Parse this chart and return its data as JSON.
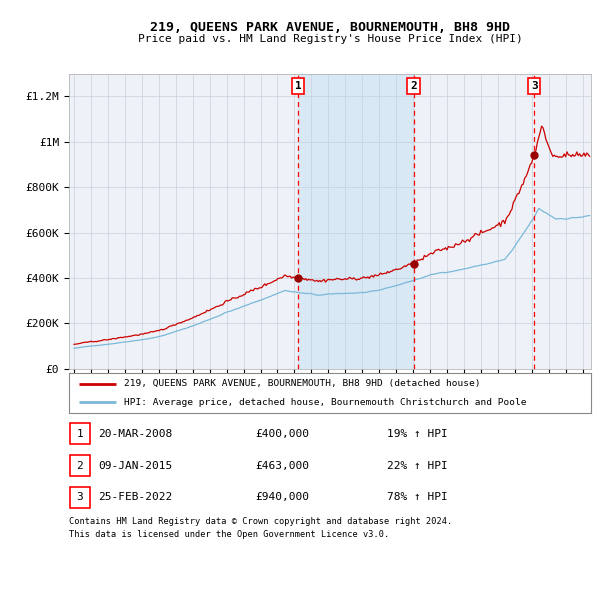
{
  "title": "219, QUEENS PARK AVENUE, BOURNEMOUTH, BH8 9HD",
  "subtitle": "Price paid vs. HM Land Registry's House Price Index (HPI)",
  "legend_line1": "219, QUEENS PARK AVENUE, BOURNEMOUTH, BH8 9HD (detached house)",
  "legend_line2": "HPI: Average price, detached house, Bournemouth Christchurch and Poole",
  "footnote1": "Contains HM Land Registry data © Crown copyright and database right 2024.",
  "footnote2": "This data is licensed under the Open Government Licence v3.0.",
  "transactions": [
    {
      "num": 1,
      "date": "20-MAR-2008",
      "price": 400000,
      "hpi_pct": "19%",
      "direction": "↑"
    },
    {
      "num": 2,
      "date": "09-JAN-2015",
      "price": 463000,
      "hpi_pct": "22%",
      "direction": "↑"
    },
    {
      "num": 3,
      "date": "25-FEB-2022",
      "price": 940000,
      "hpi_pct": "78%",
      "direction": "↑"
    }
  ],
  "sale1_x": 2008.22,
  "sale2_x": 2015.03,
  "sale3_x": 2022.15,
  "transaction_prices": [
    400000,
    463000,
    940000
  ],
  "hpi_color": "#7ab8d9",
  "property_color": "#cc0000",
  "background_color": "#ffffff",
  "plot_bg_color": "#eef2f8",
  "shade_color": "#d8e8f4",
  "grid_color": "#c8d0dc",
  "ylim": [
    0,
    1300000
  ],
  "xlim_start": 1994.7,
  "xlim_end": 2025.5,
  "yticks": [
    0,
    200000,
    400000,
    600000,
    800000,
    1000000,
    1200000
  ],
  "ytick_labels": [
    "£0",
    "£200K",
    "£400K",
    "£600K",
    "£800K",
    "£1M",
    "£1.2M"
  ]
}
